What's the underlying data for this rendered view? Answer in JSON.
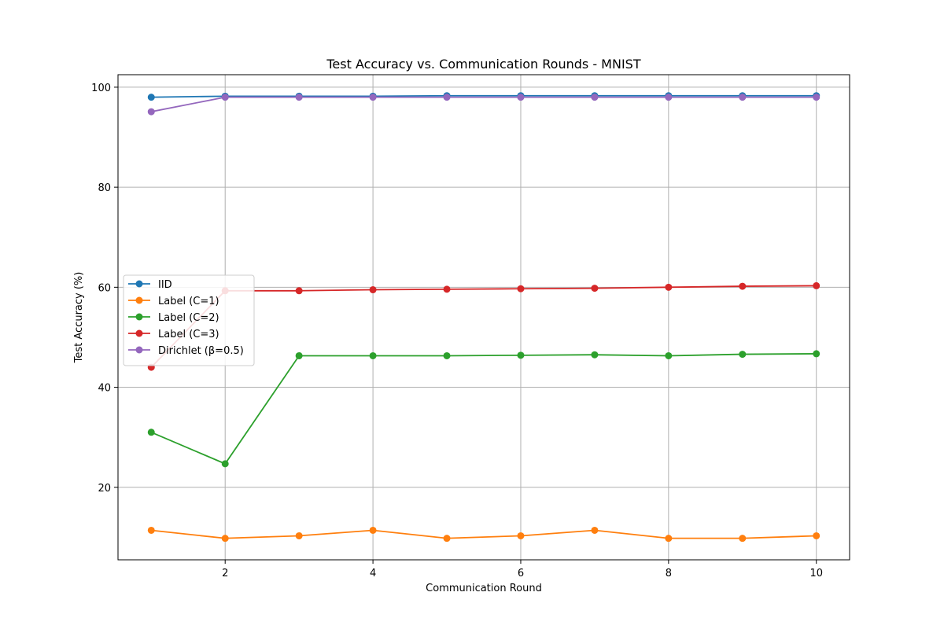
{
  "chart_data": {
    "type": "line",
    "title": "Test Accuracy vs. Communication Rounds - MNIST",
    "xlabel": "Communication Round",
    "ylabel": "Test Accuracy (%)",
    "xlim": [
      0.55,
      10.45
    ],
    "ylim": [
      5.5,
      102.5
    ],
    "xticks": [
      2,
      4,
      6,
      8,
      10
    ],
    "yticks": [
      20,
      40,
      60,
      80,
      100
    ],
    "grid": true,
    "legend_position": "center-left",
    "x": [
      1,
      2,
      3,
      4,
      5,
      6,
      7,
      8,
      9,
      10
    ],
    "series": [
      {
        "name": "IID",
        "color": "#1f77b4",
        "values": [
          98.0,
          98.2,
          98.2,
          98.2,
          98.3,
          98.3,
          98.3,
          98.3,
          98.3,
          98.3
        ]
      },
      {
        "name": "Label (C=1)",
        "color": "#ff7f0e",
        "values": [
          11.4,
          9.8,
          10.3,
          11.4,
          9.8,
          10.3,
          11.4,
          9.8,
          9.8,
          10.3
        ]
      },
      {
        "name": "Label (C=2)",
        "color": "#2ca02c",
        "values": [
          31.0,
          24.7,
          46.3,
          46.3,
          46.3,
          46.4,
          46.5,
          46.3,
          46.6,
          46.7
        ]
      },
      {
        "name": "Label (C=3)",
        "color": "#d62728",
        "values": [
          44.0,
          59.3,
          59.3,
          59.5,
          59.6,
          59.7,
          59.8,
          60.0,
          60.2,
          60.3
        ]
      },
      {
        "name": "Dirichlet (β=0.5)",
        "color": "#9467bd",
        "values": [
          95.1,
          98.0,
          98.0,
          98.0,
          98.0,
          98.0,
          98.0,
          98.0,
          98.0,
          98.0
        ]
      }
    ]
  }
}
